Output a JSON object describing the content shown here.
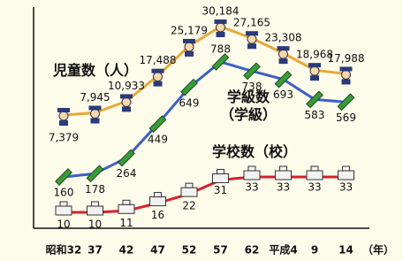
{
  "chart_data": {
    "type": "line",
    "x_label": "（年）",
    "categories": [
      "昭和32",
      "37",
      "42",
      "47",
      "52",
      "57",
      "62",
      "平成4",
      "9",
      "14"
    ],
    "series": [
      {
        "name": "児童数（人）",
        "color": "#e8a838",
        "values": [
          7379,
          7945,
          10933,
          17488,
          25179,
          30184,
          27165,
          23308,
          18968,
          17988
        ],
        "value_labels": [
          "7,379",
          "7,945",
          "10,933",
          "17,488",
          "25,179",
          "30,184",
          "27,165",
          "23,308",
          "18,968",
          "17,988"
        ]
      },
      {
        "name": "学級数（学級）",
        "color": "#3b5fc8",
        "values": [
          160,
          178,
          264,
          449,
          649,
          788,
          738,
          693,
          583,
          569
        ]
      },
      {
        "name": "学校数（校）",
        "color": "#d8202a",
        "values": [
          10,
          10,
          11,
          16,
          22,
          31,
          33,
          33,
          33,
          33
        ]
      }
    ]
  }
}
